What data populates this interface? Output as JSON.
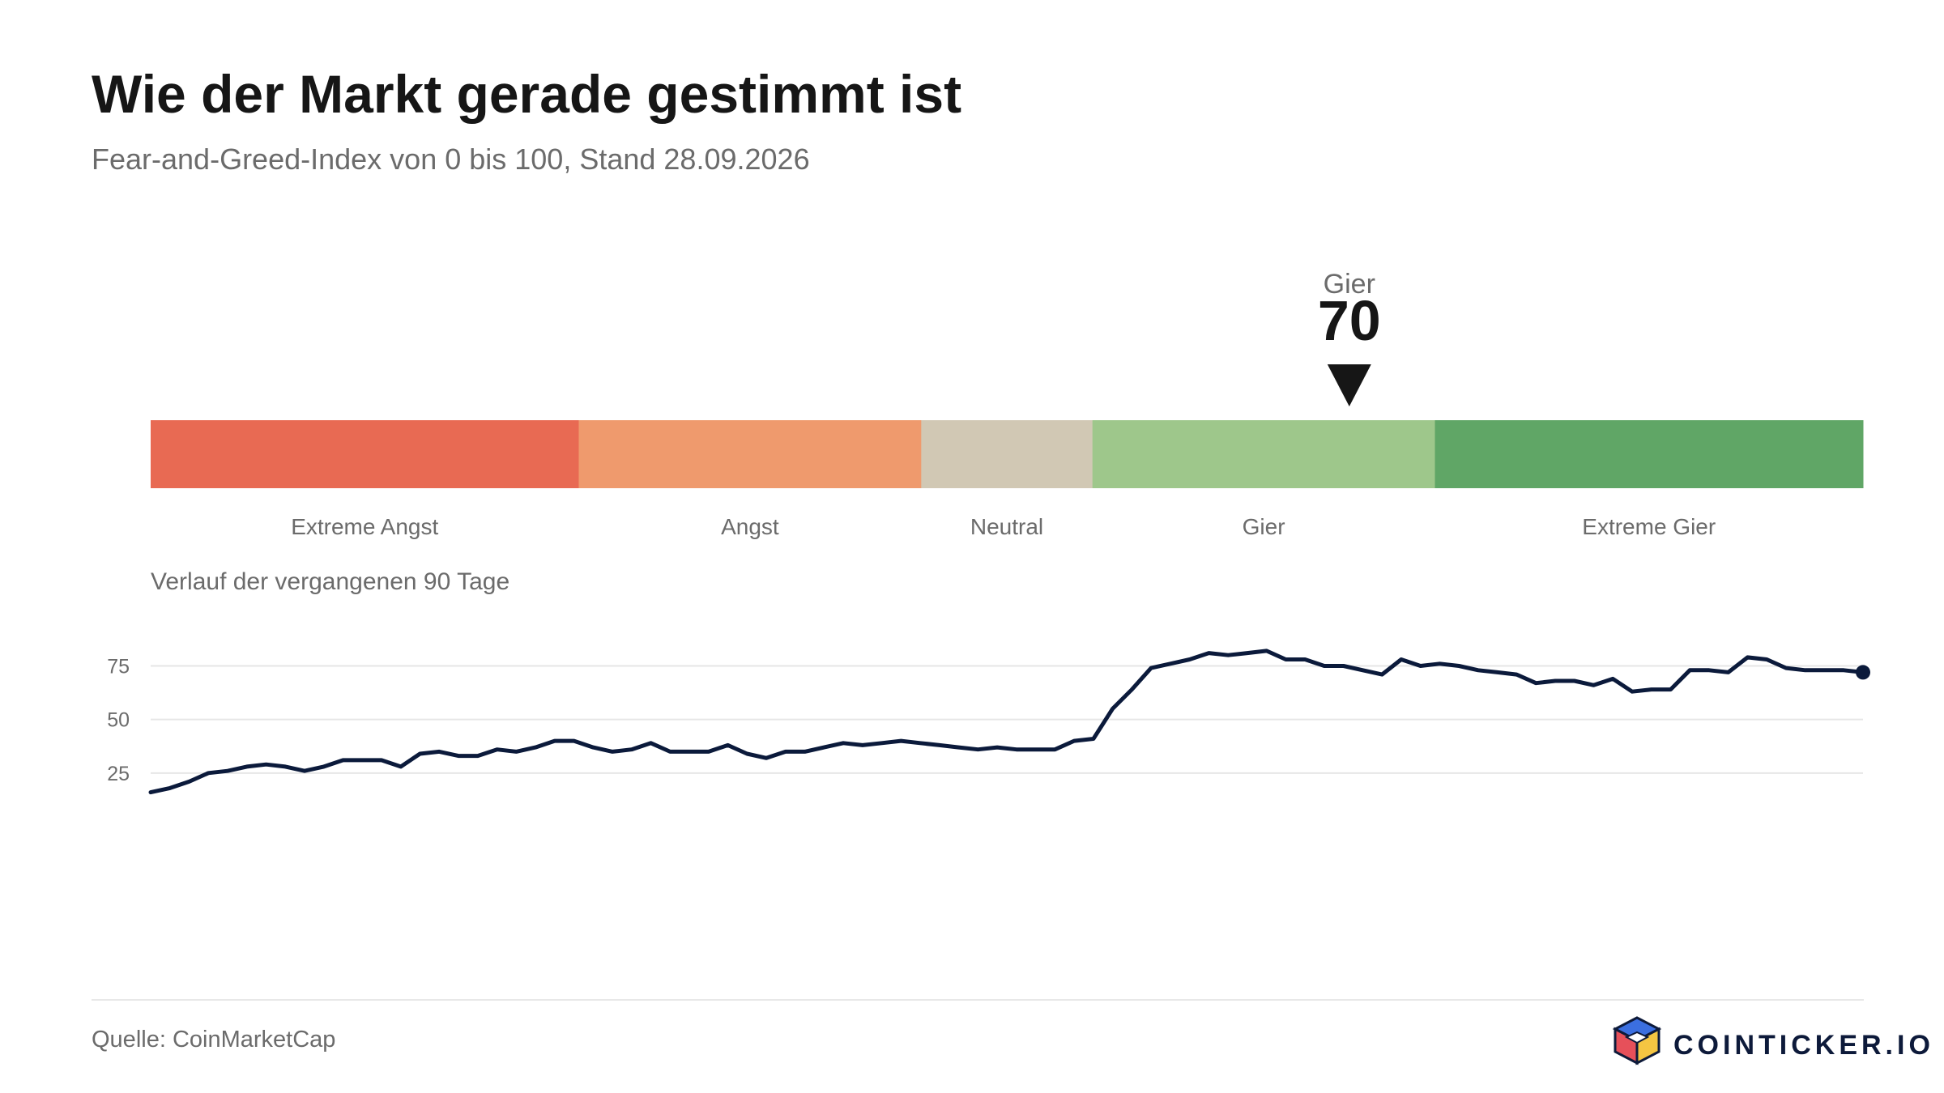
{
  "title": "Wie der Markt gerade gestimmt ist",
  "subtitle": "Fear-and-Greed-Index von 0 bis 100, Stand 28.09.2026",
  "source": "Quelle: CoinMarketCap",
  "brand": {
    "name": "COINTICKER.IO",
    "icon": "cube-logo-icon"
  },
  "chart_data": [
    {
      "type": "gauge",
      "range": [
        0,
        100
      ],
      "value": 70,
      "value_label": "Gier",
      "zones": [
        {
          "label": "Extreme Angst",
          "from": 0,
          "to": 25,
          "color": "#e86a53"
        },
        {
          "label": "Angst",
          "from": 25,
          "to": 45,
          "color": "#ef9a6d"
        },
        {
          "label": "Neutral",
          "from": 45,
          "to": 55,
          "color": "#d1c8b4"
        },
        {
          "label": "Gier",
          "from": 55,
          "to": 75,
          "color": "#9ec78b"
        },
        {
          "label": "Extreme Gier",
          "from": 75,
          "to": 100,
          "color": "#60a666"
        }
      ]
    },
    {
      "type": "line",
      "title": "Verlauf der vergangenen 90 Tage",
      "ylim": [
        0,
        100
      ],
      "yticks": [
        25,
        50,
        75
      ],
      "grid": true,
      "line_color": "#0b1a3b",
      "values": [
        16,
        18,
        21,
        25,
        26,
        28,
        29,
        28,
        26,
        28,
        31,
        31,
        31,
        28,
        34,
        35,
        33,
        33,
        36,
        35,
        37,
        40,
        40,
        37,
        35,
        36,
        39,
        35,
        35,
        35,
        38,
        34,
        32,
        35,
        35,
        37,
        39,
        38,
        39,
        40,
        39,
        38,
        37,
        36,
        37,
        36,
        36,
        36,
        40,
        41,
        55,
        64,
        74,
        76,
        78,
        81,
        80,
        81,
        82,
        78,
        78,
        75,
        75,
        73,
        71,
        78,
        75,
        76,
        75,
        73,
        72,
        71,
        67,
        68,
        68,
        66,
        69,
        63,
        64,
        64,
        73,
        73,
        72,
        79,
        78,
        74,
        73,
        73,
        73,
        72
      ]
    }
  ]
}
